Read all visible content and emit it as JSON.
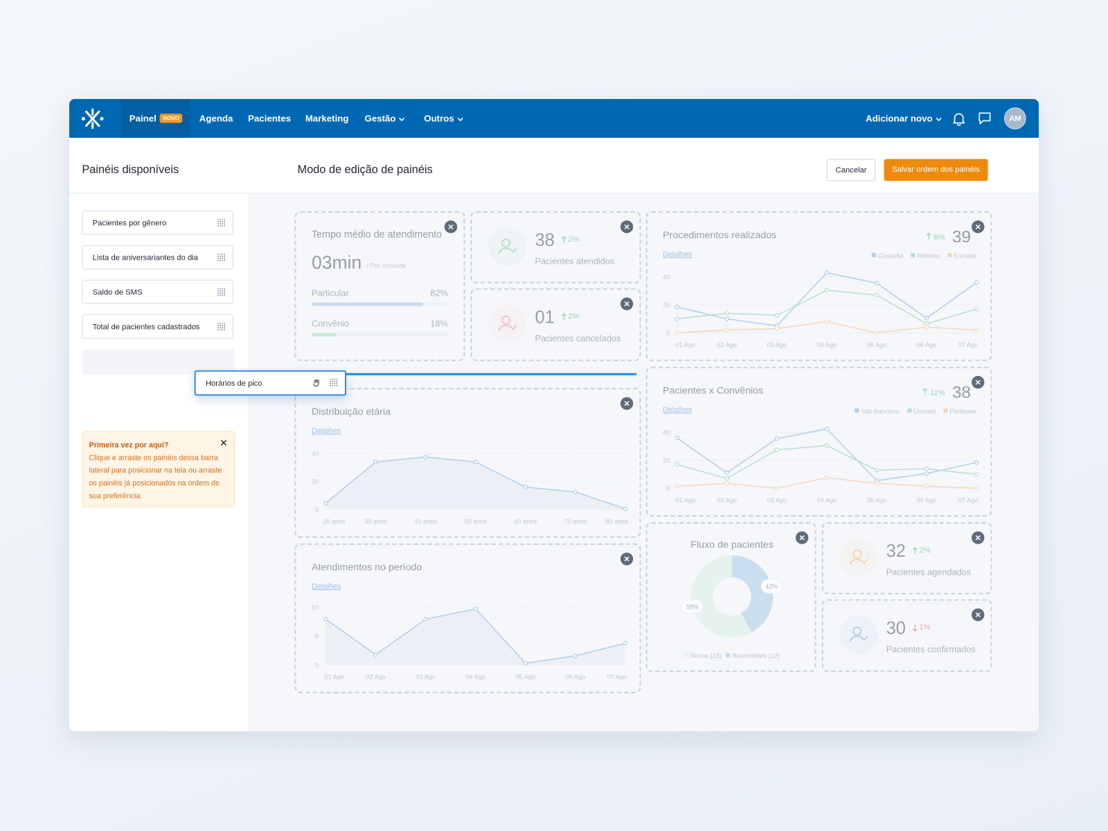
{
  "nav": {
    "items": [
      "Painel",
      "Agenda",
      "Pacientes",
      "Marketing",
      "Gestão",
      "Outros"
    ],
    "badge": "NOVO",
    "add_new": "Adicionar novo",
    "avatar": "AM"
  },
  "sidebar": {
    "title": "Painéis disponíveis",
    "items": [
      "Pacientes por gênero",
      "Lista de aniversariantes do dia",
      "Saldo de SMS",
      "Total de pacientes cadastrados"
    ],
    "dragging": "Horários de pico",
    "tip": {
      "title": "Primeira vez por aqui?",
      "text": "Clique e arraste os painéis dessa barra lateral para posicionar na tela ou arraste os painéis já posicionados na ordem de sua preferência."
    }
  },
  "header": {
    "title": "Modo de edição de painéis",
    "cancel": "Cancelar",
    "save": "Salvar ordem dos painéis"
  },
  "tempo": {
    "title": "Tempo médio de atendimento",
    "value": "03min",
    "unit": "/ Por consulta",
    "bars": [
      {
        "label": "Particular",
        "value": 82,
        "value_label": "82%",
        "color": "#9ec3e3"
      },
      {
        "label": "Convênio",
        "value": 18,
        "value_label": "18%",
        "color": "#9fd8b4"
      }
    ]
  },
  "stats": [
    {
      "value": "38",
      "change": "2%",
      "trend": "up",
      "label": "Pacientes atendidos",
      "color": "#7cc79a"
    },
    {
      "value": "01",
      "change": "2%",
      "trend": "up",
      "label": "Pacientes cancelados",
      "color": "#ec8b8b"
    },
    {
      "value": "32",
      "change": "2%",
      "trend": "up",
      "label": "Pacientes agendados",
      "color": "#f3b35f"
    },
    {
      "value": "30",
      "change": "1%",
      "trend": "down",
      "label": "Pacientes confirmados",
      "color": "#6ea6d6"
    }
  ],
  "procedimentos": {
    "type": "line",
    "title": "Procedimentos realizados",
    "link": "Detalhes",
    "change": "8%",
    "total": "39",
    "categories": [
      "01 Ago",
      "02 Ago",
      "03 Ago",
      "04 Ago",
      "05 Ago",
      "06 Ago",
      "07 Ago"
    ],
    "series": [
      {
        "name": "Consulta",
        "color": "#6fa6d8",
        "values": [
          18.5,
          10,
          5,
          43,
          35.5,
          10.5,
          36
        ]
      },
      {
        "name": "Retorno",
        "color": "#7ccb9a",
        "values": [
          10,
          14,
          12.5,
          30.5,
          27,
          6.5,
          17
        ]
      },
      {
        "name": "Encaixe",
        "color": "#f6b878",
        "values": [
          0,
          2,
          3,
          8,
          0,
          4,
          2
        ]
      }
    ],
    "ylim": [
      0,
      45
    ],
    "yticks": [
      0,
      20,
      40
    ]
  },
  "convenios": {
    "type": "line",
    "title": "Pacientes x Convênios",
    "link": "Detalhes",
    "change": "11%",
    "total": "38",
    "categories": [
      "01 Ago",
      "02 Ago",
      "03 Ago",
      "04 Ago",
      "05 Ago",
      "06 Ago",
      "07 Ago"
    ],
    "series": [
      {
        "name": "São francisco",
        "color": "#6fa6d8",
        "values": [
          36,
          11,
          35.5,
          42.5,
          5.5,
          10.5,
          18.5
        ]
      },
      {
        "name": "Unimed",
        "color": "#7ccb9a",
        "values": [
          17,
          7,
          27.5,
          30.5,
          13,
          14,
          10
        ]
      },
      {
        "name": "Particular",
        "color": "#f6b878",
        "values": [
          1.5,
          3.5,
          0,
          7.5,
          3.5,
          1.5,
          0
        ]
      }
    ],
    "ylim": [
      0,
      45
    ],
    "yticks": [
      0,
      20,
      40
    ]
  },
  "distribuicao": {
    "type": "area",
    "title": "Distribuição etária",
    "link": "Detalhes",
    "categories": [
      "20 anos",
      "30 anos",
      "40 anos",
      "50 anos",
      "60 anos",
      "70 anos",
      "80 anos"
    ],
    "values": [
      4.5,
      34,
      37.5,
      34,
      16,
      12.5,
      0.5
    ],
    "color": "#6fa6d8",
    "ylim": [
      0,
      45
    ],
    "yticks": [
      0,
      20,
      40
    ]
  },
  "atendimentos": {
    "type": "area",
    "title": "Atendimentos no período",
    "link": "Detalhes",
    "categories": [
      "01 Ago",
      "02 Ago",
      "03 Ago",
      "04 Ago",
      "05 Ago",
      "06 Ago",
      "07 Ago"
    ],
    "values": [
      8,
      1.8,
      8,
      9.8,
      0.3,
      1.6,
      3.8
    ],
    "color": "#6fa6d8",
    "ylim": [
      0,
      11
    ],
    "yticks": [
      0,
      5,
      10
    ]
  },
  "fluxo": {
    "type": "pie",
    "title": "Fluxo de pacientes",
    "categories": [
      "Novos (18)",
      "Recorrentes (12)"
    ],
    "values": [
      58,
      42
    ],
    "value_labels": [
      "58%",
      "42%"
    ],
    "colors": [
      "#d9efe1",
      "#9fc6e4"
    ]
  }
}
